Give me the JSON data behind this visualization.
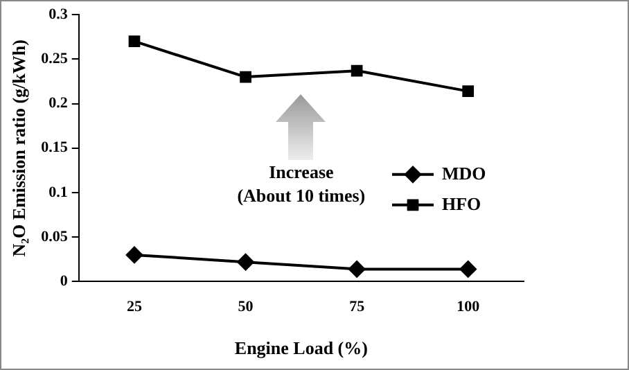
{
  "chart_data": {
    "type": "line",
    "xlabel": "Engine Load (%)",
    "ylabel": "N₂O Emission ratio (g/kWh)",
    "categories": [
      "25",
      "50",
      "75",
      "100"
    ],
    "series": [
      {
        "name": "MDO",
        "color": "#000000",
        "marker": "diamond",
        "values": [
          0.03,
          0.022,
          0.014,
          0.014
        ]
      },
      {
        "name": "HFO",
        "color": "#000000",
        "marker": "square",
        "values": [
          0.27,
          0.23,
          0.237,
          0.214
        ]
      }
    ],
    "ylim": [
      0,
      0.3
    ],
    "yticks": [
      0,
      0.05,
      0.1,
      0.15,
      0.2,
      0.25,
      0.3
    ],
    "grid": false,
    "legend": "right",
    "line_style": "solid",
    "annotations": [
      "Increase",
      "(About 10 times)"
    ]
  }
}
